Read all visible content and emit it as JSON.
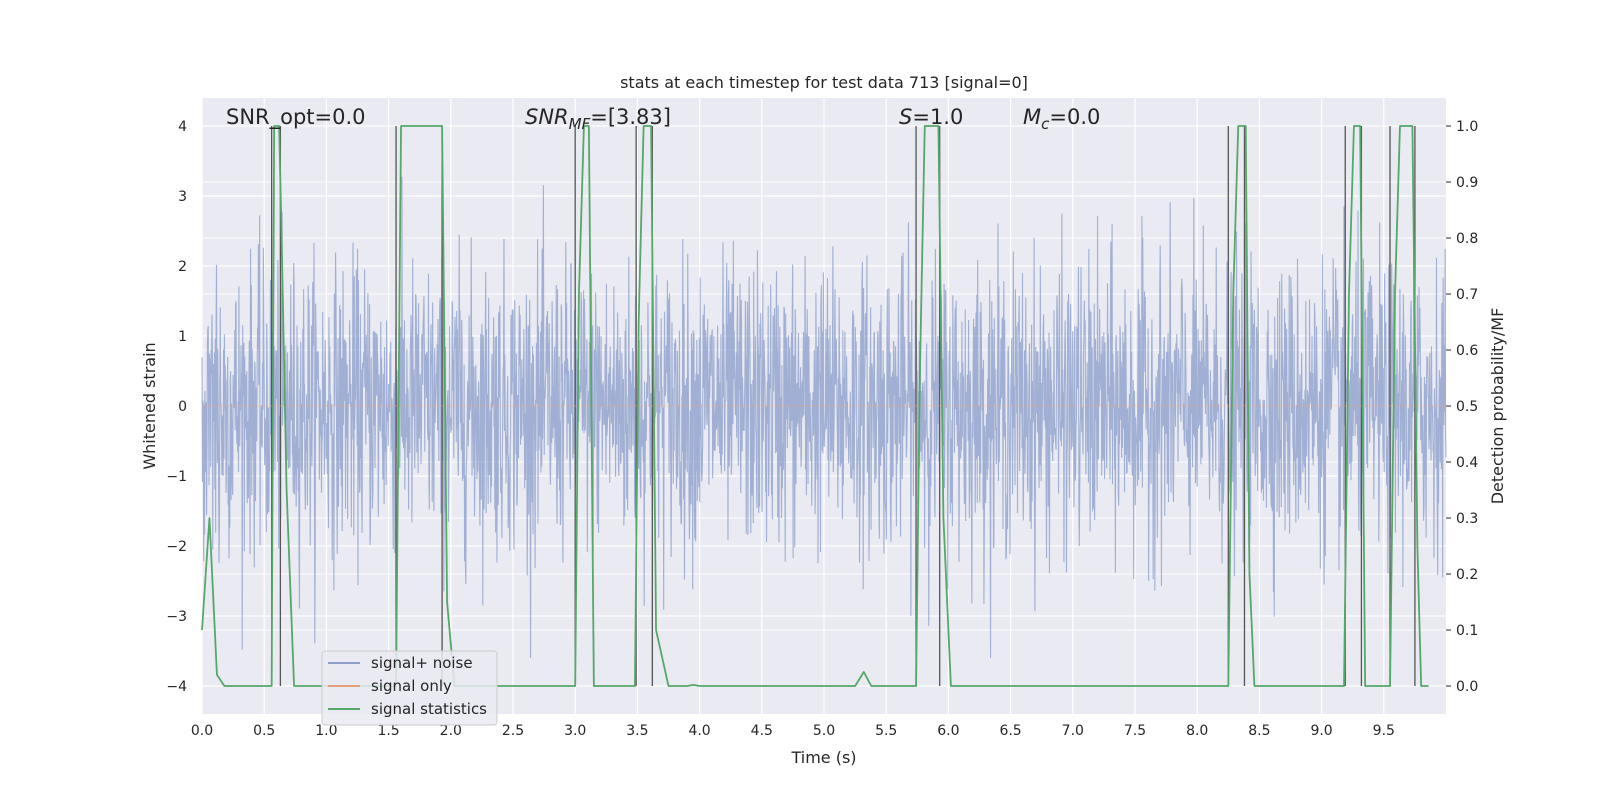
{
  "chart_data": {
    "type": "line",
    "title": "stats at each timestep for test data 713 [signal=0]",
    "xlabel": "Time (s)",
    "ylabel": "Whitened strain",
    "y2label": "Detection probability/MF",
    "xlim": [
      0.0,
      10.0
    ],
    "ylim": [
      -4.4,
      4.4
    ],
    "y2lim": [
      -0.05,
      1.05
    ],
    "xticks": [
      "0.0",
      "0.5",
      "1.0",
      "1.5",
      "2.0",
      "2.5",
      "3.0",
      "3.5",
      "4.0",
      "4.5",
      "5.0",
      "5.5",
      "6.0",
      "6.5",
      "7.0",
      "7.5",
      "8.0",
      "8.5",
      "9.0",
      "9.5"
    ],
    "yticks": [
      "−4",
      "−3",
      "−2",
      "−1",
      "0",
      "1",
      "2",
      "3",
      "4"
    ],
    "y2ticks": [
      "0.0",
      "0.1",
      "0.2",
      "0.3",
      "0.4",
      "0.5",
      "0.6",
      "0.7",
      "0.8",
      "0.9",
      "1.0"
    ],
    "grid": true,
    "legend_position": "lower-left",
    "annotations": {
      "snr_opt": "SNR_opt=0.0",
      "snr_mf_base": "SNR",
      "snr_mf_sub": "MF",
      "snr_mf_rest": "=[3.83]",
      "s_base": "S",
      "s_rest": "=1.0",
      "mc_base": "M",
      "mc_sub": "c",
      "mc_rest": "=0.0"
    },
    "noise_series": {
      "name": "signal+ noise",
      "color": "#8da0cb",
      "approx_envelope": [
        -3.6,
        4.0
      ],
      "typical_std": 1.0
    },
    "signal_series": {
      "name": "signal only",
      "color": "#e5a07a",
      "values": "zero"
    },
    "stats_series": {
      "name": "signal statistics",
      "color": "#55a868",
      "x": [
        0.0,
        0.06,
        0.12,
        0.18,
        0.56,
        0.58,
        0.62,
        0.64,
        0.68,
        0.74,
        1.56,
        1.6,
        1.64,
        1.93,
        1.97,
        2.03,
        2.09,
        3.0,
        3.03,
        3.07,
        3.11,
        3.15,
        3.48,
        3.51,
        3.55,
        3.61,
        3.65,
        3.75,
        3.9,
        3.95,
        4.0,
        5.25,
        5.32,
        5.38,
        5.74,
        5.77,
        5.81,
        5.92,
        5.96,
        6.02,
        8.25,
        8.29,
        8.33,
        8.39,
        8.42,
        8.46,
        9.18,
        9.22,
        9.26,
        9.31,
        9.35,
        9.55,
        9.59,
        9.63,
        9.73,
        9.77,
        9.8,
        9.86
      ],
      "y": [
        0.1,
        0.3,
        0.02,
        0.0,
        0.0,
        1.0,
        1.0,
        0.8,
        0.35,
        0.0,
        0.0,
        1.0,
        1.0,
        1.0,
        0.15,
        0.0,
        0.0,
        0.0,
        0.7,
        1.0,
        1.0,
        0.0,
        0.0,
        0.65,
        1.0,
        1.0,
        0.1,
        0.0,
        0.0,
        0.002,
        0.0,
        0.0,
        0.025,
        0.0,
        0.0,
        0.55,
        1.0,
        1.0,
        0.3,
        0.0,
        0.0,
        0.7,
        1.0,
        1.0,
        0.2,
        0.0,
        0.0,
        0.7,
        1.0,
        1.0,
        0.0,
        0.0,
        0.7,
        1.0,
        1.0,
        0.25,
        0.0,
        0.0
      ]
    },
    "mf_markers": {
      "color": "#555555",
      "x": [
        0.56,
        0.63,
        1.56,
        1.93,
        3.0,
        3.49,
        3.62,
        5.74,
        5.93,
        8.25,
        8.38,
        9.19,
        9.32,
        9.55,
        9.75
      ]
    },
    "legend": [
      {
        "label": "signal+ noise",
        "color": "#8da0cb"
      },
      {
        "label": "signal only",
        "color": "#e5a07a"
      },
      {
        "label": "signal statistics",
        "color": "#55a868"
      }
    ]
  }
}
